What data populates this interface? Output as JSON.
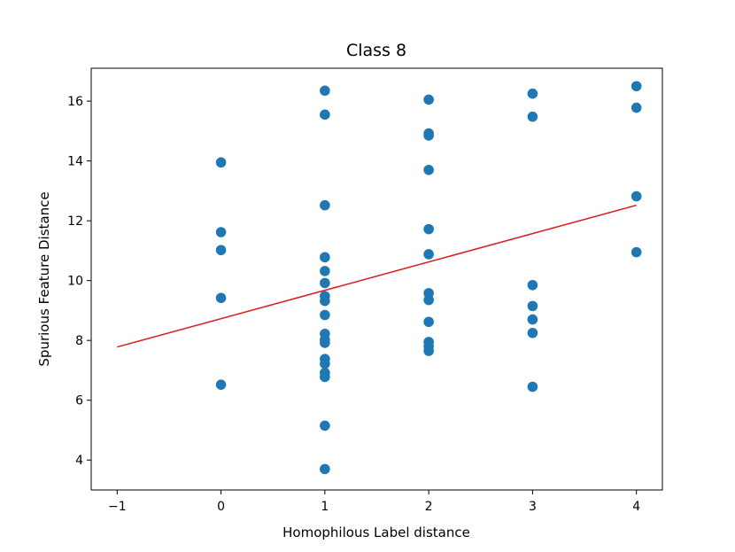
{
  "chart_data": {
    "type": "scatter",
    "title": "Class 8",
    "xlabel": "Homophilous Label distance",
    "ylabel": "Spurious Feature Distance",
    "xlim": [
      -1.25,
      4.25
    ],
    "ylim": [
      3.0,
      17.1
    ],
    "xticks": [
      -1,
      0,
      1,
      2,
      3,
      4
    ],
    "xtick_labels": [
      "−1",
      "0",
      "1",
      "2",
      "3",
      "4"
    ],
    "yticks": [
      4,
      6,
      8,
      10,
      12,
      14,
      16
    ],
    "ytick_labels": [
      "4",
      "6",
      "8",
      "10",
      "12",
      "14",
      "16"
    ],
    "grid": false,
    "series": [
      {
        "kind": "scatter",
        "color": "#1f77b4",
        "points": [
          [
            0,
            13.95
          ],
          [
            0,
            11.62
          ],
          [
            0,
            11.02
          ],
          [
            0,
            9.42
          ],
          [
            0,
            6.52
          ],
          [
            1,
            16.35
          ],
          [
            1,
            15.55
          ],
          [
            1,
            12.52
          ],
          [
            1,
            10.78
          ],
          [
            1,
            10.32
          ],
          [
            1,
            9.92
          ],
          [
            1,
            9.48
          ],
          [
            1,
            9.32
          ],
          [
            1,
            8.85
          ],
          [
            1,
            8.22
          ],
          [
            1,
            8.02
          ],
          [
            1,
            7.92
          ],
          [
            1,
            7.38
          ],
          [
            1,
            7.22
          ],
          [
            1,
            6.92
          ],
          [
            1,
            6.78
          ],
          [
            1,
            5.15
          ],
          [
            1,
            3.7
          ],
          [
            2,
            16.05
          ],
          [
            2,
            14.92
          ],
          [
            2,
            14.85
          ],
          [
            2,
            13.7
          ],
          [
            2,
            11.72
          ],
          [
            2,
            10.88
          ],
          [
            2,
            9.58
          ],
          [
            2,
            9.35
          ],
          [
            2,
            8.62
          ],
          [
            2,
            7.95
          ],
          [
            2,
            7.8
          ],
          [
            2,
            7.65
          ],
          [
            3,
            16.25
          ],
          [
            3,
            15.48
          ],
          [
            3,
            9.85
          ],
          [
            3,
            9.15
          ],
          [
            3,
            8.7
          ],
          [
            3,
            8.25
          ],
          [
            3,
            6.45
          ],
          [
            4,
            16.5
          ],
          [
            4,
            15.78
          ],
          [
            4,
            12.82
          ],
          [
            4,
            10.95
          ]
        ]
      },
      {
        "kind": "line",
        "color": "#d62728",
        "points": [
          [
            -1,
            7.78
          ],
          [
            4,
            12.52
          ]
        ]
      }
    ]
  }
}
